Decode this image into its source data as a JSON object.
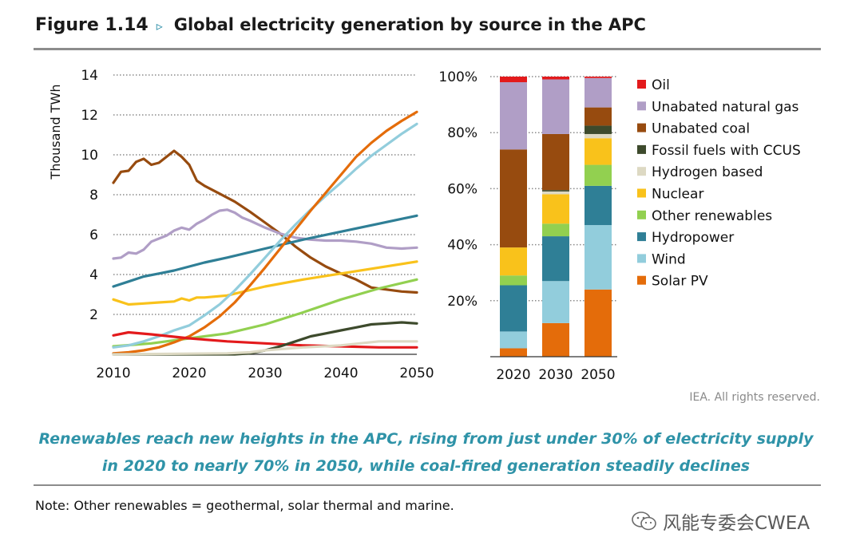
{
  "header": {
    "figure_label": "Figure 1.14",
    "arrow": "▹",
    "title": "Global electricity generation by source in the APC"
  },
  "credit": "IEA. All rights reserved.",
  "caption": {
    "line1": "Renewables reach new heights in the APC, rising from just under 30% of electricity supply",
    "line2": "in 2020 to nearly 70% in 2050, while coal-fired generation steadily declines"
  },
  "note": "Note: Other renewables = geothermal, solar thermal and marine.",
  "watermark": "风能专委会CWEA",
  "chart_data": [
    {
      "type": "line",
      "ylabel": "Thousand TWh",
      "ylim": [
        0,
        14
      ],
      "xlim": [
        2010,
        2050
      ],
      "x_ticks": [
        "2010",
        "2020",
        "2030",
        "2040",
        "2050"
      ],
      "y_ticks": [
        "2",
        "4",
        "6",
        "8",
        "10",
        "12",
        "14"
      ],
      "grid": "dotted-horizontal",
      "series": [
        {
          "name": "Unabated coal",
          "color": "#974b0f",
          "x": [
            2010,
            2011,
            2012,
            2013,
            2014,
            2015,
            2016,
            2017,
            2018,
            2019,
            2020,
            2021,
            2022,
            2024,
            2026,
            2028,
            2030,
            2032,
            2034,
            2036,
            2038,
            2040,
            2042,
            2044,
            2046,
            2048,
            2050
          ],
          "y": [
            8.6,
            9.15,
            9.2,
            9.65,
            9.8,
            9.5,
            9.6,
            9.9,
            10.2,
            9.9,
            9.5,
            8.7,
            8.45,
            8.05,
            7.65,
            7.15,
            6.6,
            6.05,
            5.4,
            4.85,
            4.4,
            4.05,
            3.75,
            3.35,
            3.25,
            3.15,
            3.1
          ]
        },
        {
          "name": "Unabated natural gas",
          "color": "#b09ec6",
          "x": [
            2010,
            2011,
            2012,
            2013,
            2014,
            2015,
            2016,
            2017,
            2018,
            2019,
            2020,
            2021,
            2022,
            2023,
            2024,
            2025,
            2026,
            2027,
            2028,
            2030,
            2032,
            2034,
            2036,
            2038,
            2040,
            2042,
            2044,
            2046,
            2048,
            2050
          ],
          "y": [
            4.8,
            4.85,
            5.1,
            5.05,
            5.25,
            5.65,
            5.8,
            5.95,
            6.2,
            6.35,
            6.25,
            6.55,
            6.75,
            7.0,
            7.2,
            7.25,
            7.1,
            6.85,
            6.7,
            6.35,
            6.05,
            5.85,
            5.75,
            5.7,
            5.7,
            5.65,
            5.55,
            5.35,
            5.3,
            5.35
          ]
        },
        {
          "name": "Hydropower",
          "color": "#2f7f96",
          "x": [
            2010,
            2012,
            2014,
            2016,
            2018,
            2020,
            2022,
            2025,
            2030,
            2035,
            2040,
            2045,
            2050
          ],
          "y": [
            3.4,
            3.65,
            3.9,
            4.05,
            4.2,
            4.4,
            4.6,
            4.85,
            5.3,
            5.75,
            6.15,
            6.55,
            6.95
          ]
        },
        {
          "name": "Nuclear",
          "color": "#f9c21b",
          "x": [
            2010,
            2012,
            2014,
            2016,
            2018,
            2019,
            2020,
            2021,
            2022,
            2025,
            2030,
            2035,
            2040,
            2045,
            2050
          ],
          "y": [
            2.75,
            2.5,
            2.55,
            2.6,
            2.65,
            2.8,
            2.7,
            2.85,
            2.85,
            2.95,
            3.4,
            3.75,
            4.05,
            4.35,
            4.65
          ]
        },
        {
          "name": "Other renewables",
          "color": "#92d050",
          "x": [
            2010,
            2015,
            2020,
            2025,
            2030,
            2035,
            2040,
            2045,
            2050
          ],
          "y": [
            0.4,
            0.55,
            0.8,
            1.05,
            1.5,
            2.1,
            2.75,
            3.3,
            3.75
          ]
        },
        {
          "name": "Wind",
          "color": "#92cddc",
          "x": [
            2010,
            2012,
            2014,
            2016,
            2018,
            2020,
            2022,
            2024,
            2026,
            2028,
            2030,
            2032,
            2034,
            2036,
            2038,
            2040,
            2042,
            2044,
            2046,
            2048,
            2050
          ],
          "y": [
            0.35,
            0.45,
            0.65,
            0.9,
            1.2,
            1.45,
            1.95,
            2.5,
            3.2,
            4.0,
            4.85,
            5.7,
            6.5,
            7.25,
            7.95,
            8.6,
            9.3,
            9.95,
            10.5,
            11.05,
            11.55
          ]
        },
        {
          "name": "Solar PV",
          "color": "#e46c0a",
          "x": [
            2010,
            2012,
            2014,
            2016,
            2018,
            2020,
            2022,
            2024,
            2026,
            2028,
            2030,
            2032,
            2034,
            2036,
            2038,
            2040,
            2042,
            2044,
            2046,
            2048,
            2050
          ],
          "y": [
            0.05,
            0.1,
            0.2,
            0.35,
            0.6,
            0.9,
            1.35,
            1.9,
            2.6,
            3.45,
            4.35,
            5.3,
            6.25,
            7.2,
            8.1,
            9.0,
            9.9,
            10.6,
            11.2,
            11.7,
            12.15
          ]
        },
        {
          "name": "Oil",
          "color": "#e31a1c",
          "x": [
            2010,
            2012,
            2015,
            2020,
            2025,
            2030,
            2035,
            2040,
            2045,
            2050
          ],
          "y": [
            0.95,
            1.1,
            1.0,
            0.8,
            0.65,
            0.55,
            0.45,
            0.4,
            0.35,
            0.35
          ]
        },
        {
          "name": "Fossil fuels with CCUS",
          "color": "#3d4a2c",
          "x": [
            2010,
            2020,
            2026,
            2028,
            2030,
            2032,
            2034,
            2036,
            2038,
            2040,
            2042,
            2044,
            2046,
            2048,
            2050
          ],
          "y": [
            0,
            0,
            0,
            0.05,
            0.2,
            0.4,
            0.65,
            0.9,
            1.05,
            1.2,
            1.35,
            1.5,
            1.55,
            1.6,
            1.55
          ]
        },
        {
          "name": "Hydrogen based",
          "color": "#ddd9c3",
          "x": [
            2010,
            2025,
            2028,
            2030,
            2035,
            2040,
            2045,
            2050
          ],
          "y": [
            0,
            0.05,
            0.1,
            0.2,
            0.35,
            0.45,
            0.65,
            0.65
          ]
        }
      ]
    },
    {
      "type": "bar",
      "stacked": true,
      "percent": true,
      "categories": [
        "2020",
        "2030",
        "2050"
      ],
      "y_ticks": [
        "20%",
        "40%",
        "60%",
        "80%",
        "100%"
      ],
      "ylim": [
        0,
        100
      ],
      "series": [
        {
          "name": "Solar PV",
          "color": "#e46c0a",
          "values": [
            3,
            12,
            24
          ]
        },
        {
          "name": "Wind",
          "color": "#92cddc",
          "values": [
            6,
            15,
            23
          ]
        },
        {
          "name": "Hydropower",
          "color": "#2f7f96",
          "values": [
            16.5,
            16,
            14
          ]
        },
        {
          "name": "Other renewables",
          "color": "#92d050",
          "values": [
            3.5,
            4.5,
            7.5
          ]
        },
        {
          "name": "Nuclear",
          "color": "#f9c21b",
          "values": [
            10,
            10.5,
            9.5
          ]
        },
        {
          "name": "Hydrogen based",
          "color": "#ddd9c3",
          "values": [
            0,
            1,
            1.5
          ]
        },
        {
          "name": "Fossil fuels with CCUS",
          "color": "#3d4a2c",
          "values": [
            0,
            0.5,
            3
          ]
        },
        {
          "name": "Unabated coal",
          "color": "#974b0f",
          "values": [
            35,
            20,
            6.5
          ]
        },
        {
          "name": "Unabated natural gas",
          "color": "#b09ec6",
          "values": [
            24,
            19.5,
            10.5
          ]
        },
        {
          "name": "Oil",
          "color": "#e31a1c",
          "values": [
            2,
            1,
            0.5
          ]
        }
      ]
    }
  ],
  "legend": [
    {
      "name": "Oil",
      "color": "#e31a1c"
    },
    {
      "name": "Unabated natural gas",
      "color": "#b09ec6"
    },
    {
      "name": "Unabated coal",
      "color": "#974b0f"
    },
    {
      "name": "Fossil fuels with CCUS",
      "color": "#3d4a2c"
    },
    {
      "name": "Hydrogen based",
      "color": "#ddd9c3"
    },
    {
      "name": "Nuclear",
      "color": "#f9c21b"
    },
    {
      "name": "Other renewables",
      "color": "#92d050"
    },
    {
      "name": "Hydropower",
      "color": "#2f7f96"
    },
    {
      "name": "Wind",
      "color": "#92cddc"
    },
    {
      "name": "Solar PV",
      "color": "#e46c0a"
    }
  ]
}
